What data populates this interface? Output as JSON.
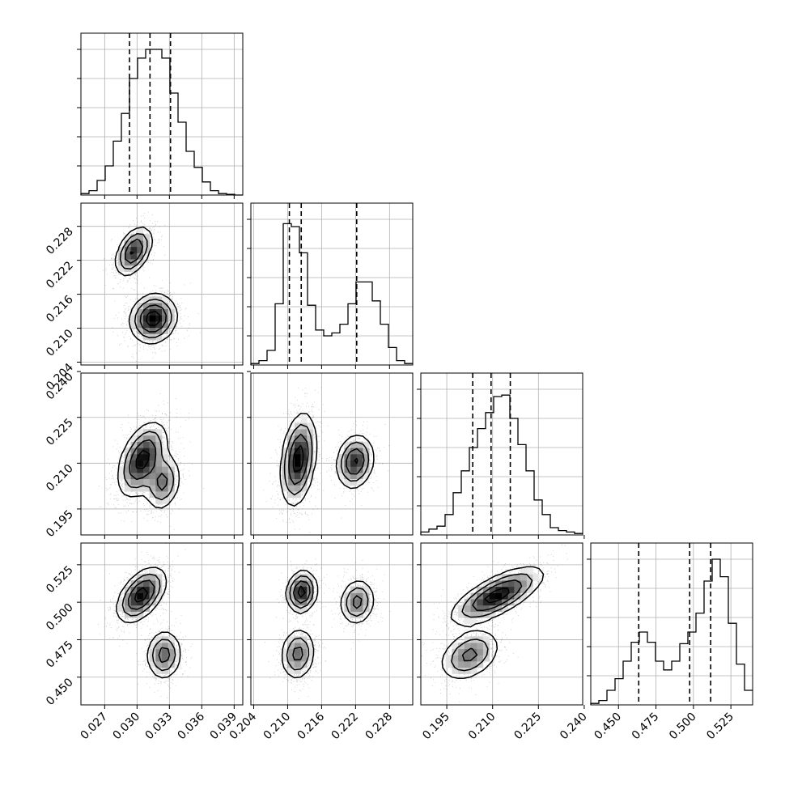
{
  "chart_data": {
    "type": "corner",
    "grid": true,
    "colors": {
      "line": "#000000",
      "grid": "#b0b0b0",
      "points": "#000000"
    },
    "params": [
      {
        "key": "p0",
        "range": [
          0.0248,
          0.0398
        ],
        "ticks": [
          0.027,
          0.03,
          0.033,
          0.036,
          0.039
        ],
        "tick_labels": [
          "0.027",
          "0.030",
          "0.033",
          "0.036",
          "0.039"
        ],
        "quantiles": [
          0.0293,
          0.0312,
          0.0331
        ]
      },
      {
        "key": "p1",
        "range": [
          0.2035,
          0.2321
        ],
        "ticks": [
          0.204,
          0.21,
          0.216,
          0.222,
          0.228
        ],
        "tick_labels": [
          "0.204",
          "0.210",
          "0.216",
          "0.222",
          "0.228"
        ],
        "quantiles": [
          0.2103,
          0.2124,
          0.2222
        ]
      },
      {
        "key": "p2",
        "range": [
          0.1865,
          0.2395
        ],
        "ticks": [
          0.195,
          0.21,
          0.225,
          0.24
        ],
        "tick_labels": [
          "0.195",
          "0.210",
          "0.225",
          "0.240"
        ],
        "quantiles": [
          0.2035,
          0.2095,
          0.2158
        ]
      },
      {
        "key": "p3",
        "range": [
          0.4315,
          0.5395
        ],
        "ticks": [
          0.45,
          0.475,
          0.5,
          0.525
        ],
        "tick_labels": [
          "0.450",
          "0.475",
          "0.500",
          "0.525"
        ],
        "quantiles": [
          0.4635,
          0.4975,
          0.5115
        ]
      }
    ],
    "histograms": [
      {
        "param": "p0",
        "counts": [
          0.01,
          0.03,
          0.1,
          0.2,
          0.37,
          0.56,
          0.8,
          0.94,
          1.0,
          1.0,
          0.94,
          0.7,
          0.5,
          0.3,
          0.19,
          0.09,
          0.03,
          0.01,
          0.005,
          0
        ]
      },
      {
        "param": "p1",
        "counts": [
          0.01,
          0.03,
          0.1,
          0.42,
          0.97,
          0.95,
          0.77,
          0.41,
          0.24,
          0.2,
          0.22,
          0.28,
          0.42,
          0.57,
          0.57,
          0.44,
          0.28,
          0.12,
          0.03,
          0.01
        ]
      },
      {
        "param": "p2",
        "counts": [
          0.02,
          0.04,
          0.06,
          0.14,
          0.29,
          0.44,
          0.6,
          0.73,
          0.84,
          0.95,
          0.96,
          0.8,
          0.62,
          0.44,
          0.24,
          0.14,
          0.05,
          0.03,
          0.02,
          0.01
        ]
      },
      {
        "param": "p3",
        "counts": [
          0.01,
          0.03,
          0.1,
          0.18,
          0.3,
          0.43,
          0.5,
          0.43,
          0.3,
          0.24,
          0.3,
          0.42,
          0.5,
          0.63,
          0.85,
          1.0,
          0.88,
          0.56,
          0.28,
          0.1
        ]
      }
    ],
    "joint": [
      {
        "x": "p0",
        "y": "p1",
        "modes": [
          {
            "mx": 0.0297,
            "my": 0.2236,
            "sx": 0.00082,
            "sy": 0.0021,
            "rho": 0.45,
            "w": 0.38
          },
          {
            "mx": 0.0315,
            "my": 0.2117,
            "sx": 0.00105,
            "sy": 0.0021,
            "rho": 0.1,
            "w": 0.62
          }
        ]
      },
      {
        "x": "p0",
        "y": "p2",
        "modes": [
          {
            "mx": 0.0305,
            "my": 0.2112,
            "sx": 0.0011,
            "sy": 0.0059,
            "rho": 0.45,
            "w": 0.72
          },
          {
            "mx": 0.0324,
            "my": 0.2036,
            "sx": 0.0008,
            "sy": 0.0045,
            "rho": 0.2,
            "w": 0.28
          }
        ]
      },
      {
        "x": "p1",
        "y": "p2",
        "modes": [
          {
            "mx": 0.2119,
            "my": 0.2112,
            "sx": 0.0015,
            "sy": 0.0073,
            "rho": 0.3,
            "w": 0.64
          },
          {
            "mx": 0.2219,
            "my": 0.2105,
            "sx": 0.0016,
            "sy": 0.0043,
            "rho": 0.15,
            "w": 0.36
          }
        ]
      },
      {
        "x": "p0",
        "y": "p3",
        "modes": [
          {
            "mx": 0.0304,
            "my": 0.5049,
            "sx": 0.0011,
            "sy": 0.0089,
            "rho": 0.5,
            "w": 0.66
          },
          {
            "mx": 0.0325,
            "my": 0.4649,
            "sx": 0.0008,
            "sy": 0.0081,
            "rho": 0.05,
            "w": 0.34
          }
        ]
      },
      {
        "x": "p1",
        "y": "p3",
        "modes": [
          {
            "mx": 0.2125,
            "my": 0.5069,
            "sx": 0.0013,
            "sy": 0.0068,
            "rho": 0.1,
            "w": 0.36
          },
          {
            "mx": 0.2223,
            "my": 0.5002,
            "sx": 0.0015,
            "sy": 0.0075,
            "rho": 0.1,
            "w": 0.3
          },
          {
            "mx": 0.2118,
            "my": 0.4655,
            "sx": 0.0015,
            "sy": 0.0085,
            "rho": 0.1,
            "w": 0.34
          }
        ]
      },
      {
        "x": "p2",
        "y": "p3",
        "modes": [
          {
            "mx": 0.2115,
            "my": 0.5045,
            "sx": 0.0073,
            "sy": 0.0092,
            "rho": 0.72,
            "w": 0.66
          },
          {
            "mx": 0.2025,
            "my": 0.4648,
            "sx": 0.0049,
            "sy": 0.0085,
            "rho": 0.35,
            "w": 0.34
          }
        ]
      }
    ]
  }
}
